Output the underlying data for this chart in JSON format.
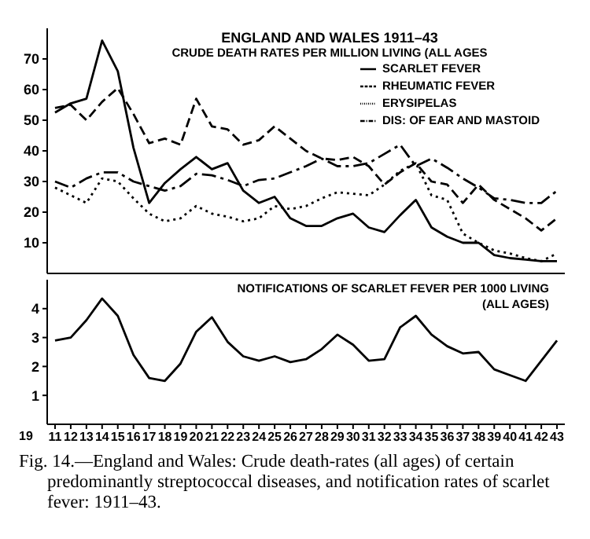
{
  "chart_data": [
    {
      "type": "line",
      "title": "ENGLAND AND WALES 1911–43",
      "subtitle": "CRUDE DEATH RATES PER MILLION LIVING (ALL AGES",
      "x": [
        1911,
        1912,
        1913,
        1914,
        1915,
        1916,
        1917,
        1918,
        1919,
        1920,
        1921,
        1922,
        1923,
        1924,
        1925,
        1926,
        1927,
        1928,
        1929,
        1930,
        1931,
        1932,
        1933,
        1934,
        1935,
        1936,
        1937,
        1938,
        1939,
        1940,
        1941,
        1942,
        1943
      ],
      "series": [
        {
          "name": "SCARLET FEVER",
          "color": "#000000",
          "line_style": "solid",
          "values": [
            52.5,
            55.5,
            57,
            76,
            66,
            41,
            23,
            29.5,
            34,
            38,
            34,
            36,
            27,
            23,
            25,
            18,
            15.5,
            15.5,
            18,
            19.5,
            15,
            13.5,
            19,
            24,
            15,
            12,
            10,
            10,
            6,
            5,
            4.5,
            4,
            4
          ]
        },
        {
          "name": "RHEUMATIC FEVER",
          "color": "#000000",
          "line_style": "dashed",
          "values": [
            54,
            55,
            50,
            56,
            60.5,
            52,
            42.5,
            44,
            42,
            57,
            48,
            47,
            42,
            43.5,
            48,
            44,
            40,
            37.5,
            37,
            38,
            35,
            29,
            33,
            36,
            30,
            29,
            23,
            29,
            24,
            21,
            18,
            14,
            18
          ]
        },
        {
          "name": "ERYSIPELAS",
          "color": "#000000",
          "line_style": "dotted",
          "values": [
            28,
            25.5,
            23,
            31,
            30,
            24.5,
            19.5,
            17,
            18,
            22,
            19.5,
            18.5,
            17,
            18,
            22,
            21,
            22,
            24.5,
            26.5,
            26,
            25.5,
            29,
            33.5,
            36,
            25.5,
            24,
            13,
            10,
            7.5,
            6.5,
            5,
            4,
            6.5
          ]
        },
        {
          "name": "DIS: OF EAR AND MASTOID",
          "color": "#000000",
          "line_style": "dashdot",
          "values": [
            30,
            28,
            31,
            33,
            33,
            30,
            28.5,
            27,
            28.5,
            32.5,
            32,
            30.5,
            28.5,
            30.5,
            31,
            33,
            35,
            37.5,
            35,
            35,
            36,
            39,
            42,
            35,
            37.5,
            34.5,
            31,
            28,
            24.5,
            24,
            23,
            23,
            27
          ]
        }
      ],
      "xlim": [
        1910.5,
        1943.5
      ],
      "ylim": [
        0,
        80
      ],
      "yticks": [
        10,
        20,
        30,
        40,
        50,
        60,
        70
      ],
      "tick_labels": "y",
      "legend": "top right",
      "marker": "none"
    },
    {
      "type": "line",
      "title": "NOTIFICATIONS OF SCARLET FEVER PER 1000 LIVING",
      "subtitle": "(ALL AGES)",
      "x": [
        1911,
        1912,
        1913,
        1914,
        1915,
        1916,
        1917,
        1918,
        1919,
        1920,
        1921,
        1922,
        1923,
        1924,
        1925,
        1926,
        1927,
        1928,
        1929,
        1930,
        1931,
        1932,
        1933,
        1934,
        1935,
        1936,
        1937,
        1938,
        1939,
        1940,
        1941,
        1942,
        1943
      ],
      "series": [
        {
          "color": "#000000",
          "line_style": "solid",
          "values": [
            2.9,
            3,
            3.6,
            4.35,
            3.75,
            2.4,
            1.6,
            1.5,
            2.1,
            3.2,
            3.7,
            2.85,
            2.35,
            2.2,
            2.35,
            2.15,
            2.25,
            2.6,
            3.1,
            2.75,
            2.2,
            2.25,
            3.35,
            3.75,
            3.1,
            2.7,
            2.45,
            2.5,
            1.9,
            1.7,
            1.5,
            2.2,
            2.9
          ]
        }
      ],
      "xlim": [
        1910.5,
        1943.5
      ],
      "ylim": [
        0,
        5
      ],
      "yticks": [
        1,
        2,
        3,
        4
      ],
      "xticks": [
        {
          "value": 1911,
          "label": "11"
        },
        {
          "value": 1912,
          "label": "12"
        },
        {
          "value": 1913,
          "label": "13"
        },
        {
          "value": 1914,
          "label": "14"
        },
        {
          "value": 1915,
          "label": "15"
        },
        {
          "value": 1916,
          "label": "16"
        },
        {
          "value": 1917,
          "label": "17"
        },
        {
          "value": 1918,
          "label": "18"
        },
        {
          "value": 1919,
          "label": "19"
        },
        {
          "value": 1920,
          "label": "20"
        },
        {
          "value": 1921,
          "label": "21"
        },
        {
          "value": 1922,
          "label": "22"
        },
        {
          "value": 1923,
          "label": "23"
        },
        {
          "value": 1924,
          "label": "24"
        },
        {
          "value": 1925,
          "label": "25"
        },
        {
          "value": 1926,
          "label": "26"
        },
        {
          "value": 1927,
          "label": "27"
        },
        {
          "value": 1928,
          "label": "28"
        },
        {
          "value": 1929,
          "label": "29"
        },
        {
          "value": 1930,
          "label": "30"
        },
        {
          "value": 1931,
          "label": "31"
        },
        {
          "value": 1932,
          "label": "32"
        },
        {
          "value": 1933,
          "label": "33"
        },
        {
          "value": 1934,
          "label": "34"
        },
        {
          "value": 1935,
          "label": "35"
        },
        {
          "value": 1936,
          "label": "36"
        },
        {
          "value": 1937,
          "label": "37"
        },
        {
          "value": 1938,
          "label": "38"
        },
        {
          "value": 1939,
          "label": "39"
        },
        {
          "value": 1940,
          "label": "40"
        },
        {
          "value": 1941,
          "label": "41"
        },
        {
          "value": 1942,
          "label": "42"
        },
        {
          "value": 1943,
          "label": "43"
        }
      ],
      "annotations": [
        "19",
        "Fig. 14.—England and Wales: Crude death-rates (all ages) of certain predominantly streptococcal diseases, and notification rates of scarlet fever: 1911–43."
      ],
      "marker": "none"
    }
  ]
}
